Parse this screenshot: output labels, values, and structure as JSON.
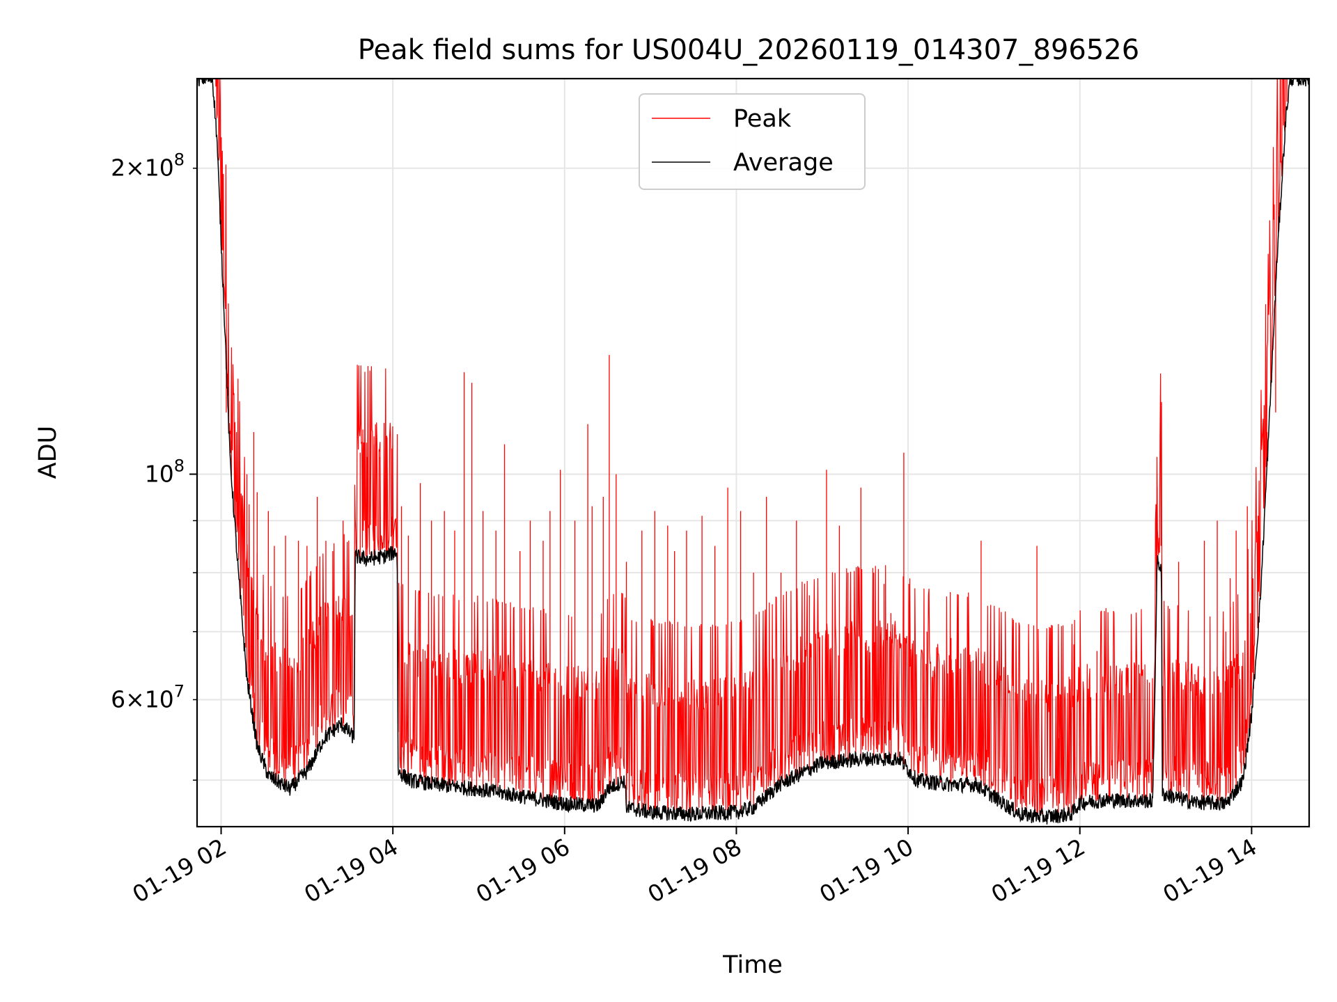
{
  "chart_data": {
    "type": "line",
    "title": "Peak field sums for US004U_20260119_014307_896526",
    "xlabel": "Time",
    "ylabel": "ADU",
    "yscale": "log",
    "xlim": [
      1.72,
      14.67
    ],
    "ylim": [
      45000000,
      245000000
    ],
    "x_unit": "hours on 01-19",
    "grid": true,
    "legend_position": "upper center",
    "x_ticks": [
      {
        "value": 2,
        "label": "01-19 02"
      },
      {
        "value": 4,
        "label": "01-19 04"
      },
      {
        "value": 6,
        "label": "01-19 06"
      },
      {
        "value": 8,
        "label": "01-19 08"
      },
      {
        "value": 10,
        "label": "01-19 10"
      },
      {
        "value": 12,
        "label": "01-19 12"
      },
      {
        "value": 14,
        "label": "01-19 14"
      }
    ],
    "y_major_ticks": [
      {
        "value": 100000000,
        "base": "10",
        "exp": "8"
      }
    ],
    "y_minor_ticks": [
      {
        "value": 60000000,
        "mant": "6",
        "base": "10",
        "exp": "7",
        "labeled": true
      },
      {
        "value": 200000000,
        "mant": "2",
        "base": "10",
        "exp": "8",
        "labeled": true
      },
      {
        "value": 50000000,
        "labeled": false
      },
      {
        "value": 70000000,
        "labeled": false
      },
      {
        "value": 80000000,
        "labeled": false
      },
      {
        "value": 90000000,
        "labeled": false
      }
    ],
    "series": [
      {
        "name": "Peak",
        "color": "#ff0000",
        "noise_above_average": true,
        "spikes": [
          [
            1.85,
            245000000
          ],
          [
            2.06,
            115000000
          ],
          [
            2.12,
            108000000
          ],
          [
            2.17,
            100000000
          ],
          [
            2.3,
            100000000
          ],
          [
            2.38,
            110000000
          ],
          [
            2.42,
            96000000
          ],
          [
            2.55,
            92000000
          ],
          [
            2.62,
            85000000
          ],
          [
            2.75,
            87000000
          ],
          [
            2.9,
            86000000
          ],
          [
            3.0,
            85000000
          ],
          [
            3.12,
            95000000
          ],
          [
            3.22,
            86000000
          ],
          [
            3.3,
            84000000
          ],
          [
            3.42,
            90000000
          ],
          [
            3.62,
            105000000
          ],
          [
            3.7,
            104000000
          ],
          [
            3.78,
            107000000
          ],
          [
            3.85,
            104000000
          ],
          [
            3.93,
            103000000
          ],
          [
            3.99,
            106000000
          ],
          [
            4.1,
            93000000
          ],
          [
            4.18,
            87000000
          ],
          [
            4.32,
            98000000
          ],
          [
            4.45,
            90000000
          ],
          [
            4.6,
            92000000
          ],
          [
            4.72,
            88000000
          ],
          [
            4.83,
            126000000
          ],
          [
            4.92,
            123000000
          ],
          [
            5.05,
            92000000
          ],
          [
            5.2,
            88000000
          ],
          [
            5.3,
            107000000
          ],
          [
            5.48,
            84000000
          ],
          [
            5.6,
            90000000
          ],
          [
            5.75,
            86000000
          ],
          [
            5.83,
            92000000
          ],
          [
            5.95,
            101000000
          ],
          [
            6.12,
            90000000
          ],
          [
            6.27,
            112000000
          ],
          [
            6.32,
            93000000
          ],
          [
            6.45,
            95000000
          ],
          [
            6.52,
            131000000
          ],
          [
            6.6,
            100000000
          ],
          [
            6.72,
            82000000
          ],
          [
            6.9,
            88000000
          ],
          [
            7.05,
            92000000
          ],
          [
            7.2,
            89000000
          ],
          [
            7.28,
            84000000
          ],
          [
            7.42,
            88000000
          ],
          [
            7.6,
            91000000
          ],
          [
            7.75,
            85000000
          ],
          [
            7.9,
            97000000
          ],
          [
            8.05,
            92000000
          ],
          [
            8.2,
            80000000
          ],
          [
            8.35,
            95000000
          ],
          [
            8.52,
            80000000
          ],
          [
            8.7,
            90000000
          ],
          [
            8.85,
            76000000
          ],
          [
            9.05,
            101000000
          ],
          [
            9.2,
            89000000
          ],
          [
            9.3,
            80000000
          ],
          [
            9.45,
            97000000
          ],
          [
            9.6,
            80000000
          ],
          [
            9.72,
            78000000
          ],
          [
            9.8,
            73000000
          ],
          [
            9.95,
            105000000
          ],
          [
            10.22,
            70000000
          ],
          [
            10.5,
            69000000
          ],
          [
            10.85,
            86000000
          ],
          [
            11.05,
            63000000
          ],
          [
            11.25,
            61000000
          ],
          [
            11.5,
            85000000
          ],
          [
            11.75,
            55000000
          ],
          [
            11.93,
            68000000
          ],
          [
            12.2,
            67000000
          ],
          [
            12.35,
            60000000
          ],
          [
            12.55,
            65000000
          ],
          [
            12.9,
            97000000
          ],
          [
            13.15,
            82000000
          ],
          [
            13.45,
            86000000
          ],
          [
            13.6,
            90000000
          ],
          [
            13.7,
            70000000
          ],
          [
            13.75,
            79000000
          ],
          [
            13.82,
            88000000
          ],
          [
            13.95,
            93000000
          ],
          [
            14.18,
            110000000
          ],
          [
            14.28,
            115000000
          ]
        ]
      },
      {
        "name": "Average",
        "color": "#000000",
        "points": [
          [
            1.72,
            245000000
          ],
          [
            1.9,
            245000000
          ],
          [
            1.95,
            215000000
          ],
          [
            2.0,
            170000000
          ],
          [
            2.05,
            135000000
          ],
          [
            2.1,
            105000000
          ],
          [
            2.2,
            80000000
          ],
          [
            2.3,
            63000000
          ],
          [
            2.42,
            54000000
          ],
          [
            2.55,
            50500000
          ],
          [
            2.8,
            49000000
          ],
          [
            3.0,
            51000000
          ],
          [
            3.2,
            55000000
          ],
          [
            3.4,
            56800000
          ],
          [
            3.55,
            55000000
          ],
          [
            3.56,
            83000000
          ],
          [
            3.7,
            82500000
          ],
          [
            3.9,
            83000000
          ],
          [
            4.05,
            84000000
          ],
          [
            4.06,
            51000000
          ],
          [
            4.2,
            50000000
          ],
          [
            4.5,
            49500000
          ],
          [
            5.0,
            49000000
          ],
          [
            5.5,
            48200000
          ],
          [
            6.0,
            47400000
          ],
          [
            6.4,
            47200000
          ],
          [
            6.5,
            49000000
          ],
          [
            6.7,
            50000000
          ],
          [
            6.72,
            47000000
          ],
          [
            7.0,
            46500000
          ],
          [
            7.5,
            46300000
          ],
          [
            8.0,
            46500000
          ],
          [
            8.2,
            47000000
          ],
          [
            8.5,
            49500000
          ],
          [
            9.0,
            52000000
          ],
          [
            9.5,
            52500000
          ],
          [
            9.9,
            52500000
          ],
          [
            10.1,
            50000000
          ],
          [
            10.5,
            49500000
          ],
          [
            10.8,
            49500000
          ],
          [
            11.1,
            47500000
          ],
          [
            11.3,
            46300000
          ],
          [
            11.6,
            46000000
          ],
          [
            11.9,
            46300000
          ],
          [
            12.0,
            47500000
          ],
          [
            12.3,
            47800000
          ],
          [
            12.85,
            47700000
          ],
          [
            12.9,
            82000000
          ],
          [
            12.95,
            81000000
          ],
          [
            12.96,
            48500000
          ],
          [
            13.3,
            47600000
          ],
          [
            13.7,
            47400000
          ],
          [
            13.9,
            50000000
          ],
          [
            14.0,
            58000000
          ],
          [
            14.1,
            75000000
          ],
          [
            14.2,
            110000000
          ],
          [
            14.3,
            165000000
          ],
          [
            14.4,
            225000000
          ],
          [
            14.45,
            245000000
          ],
          [
            14.67,
            245000000
          ]
        ]
      }
    ]
  }
}
